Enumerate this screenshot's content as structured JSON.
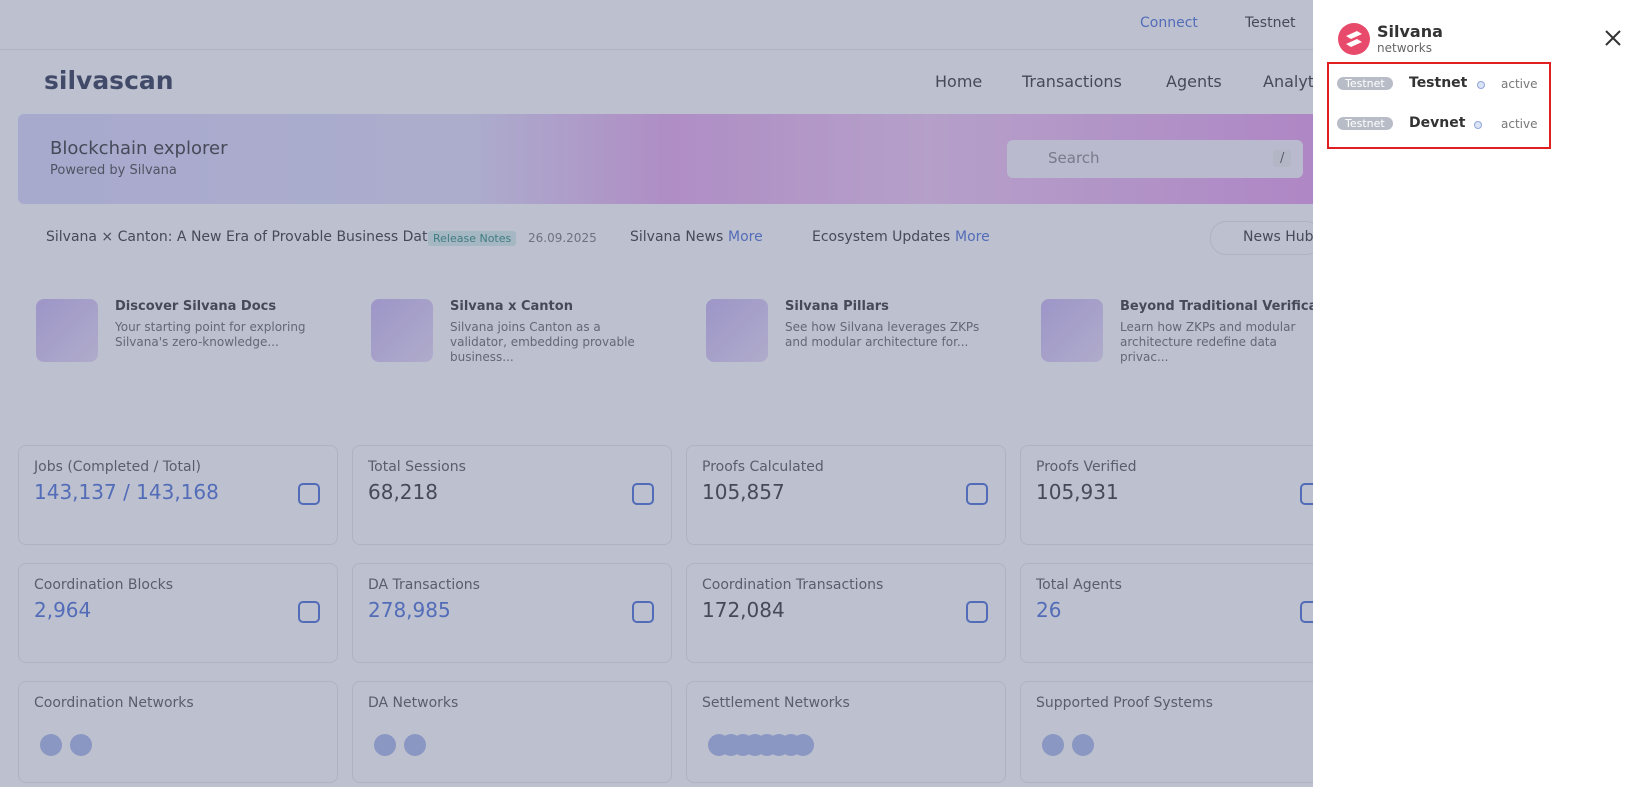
{
  "topbar": {
    "connect": "Connect",
    "network": "Testnet"
  },
  "logo": "silvascan",
  "nav": [
    "Home",
    "Transactions",
    "Agents",
    "Analytics"
  ],
  "banner": {
    "title": "Blockchain explorer",
    "subtitle": "Powered by Silvana",
    "search": "Search",
    "shortcut": "/"
  },
  "ticker": {
    "headline": "Silvana × Canton: A New Era of Provable Business Data",
    "badge": "Release Notes",
    "date": "26.09.2025",
    "news": "Silvana News",
    "news_more": "More",
    "ecosystem": "Ecosystem Updates",
    "ecosystem_more": "More",
    "hub": "News Hub"
  },
  "articles": [
    {
      "title": "Discover Silvana Docs",
      "text": "Your starting point for exploring Silvana's zero-knowledge..."
    },
    {
      "title": "Silvana x Canton",
      "text": "Silvana joins Canton as a validator, embedding provable business..."
    },
    {
      "title": "Silvana Pillars",
      "text": "See how Silvana leverages ZKPs and modular architecture for..."
    },
    {
      "title": "Beyond Traditional Verification",
      "text": "Learn how ZKPs and modular architecture redefine data privac..."
    }
  ],
  "stats": [
    {
      "label": "Jobs (Completed / Total)",
      "value": "143,137 / 143,168"
    },
    {
      "label": "Total Sessions",
      "value": "68,218"
    },
    {
      "label": "Proofs Calculated",
      "value": "105,857"
    },
    {
      "label": "Proofs Verified",
      "value": "105,931"
    },
    {
      "label": "Coordination Blocks",
      "value": "2,964"
    },
    {
      "label": "DA Transactions",
      "value": "278,985"
    },
    {
      "label": "Coordination Transactions",
      "value": "172,084"
    },
    {
      "label": "Total Agents",
      "value": "26"
    }
  ],
  "networks": [
    "Coordination Networks",
    "DA Networks",
    "Settlement Networks",
    "Supported Proof Systems"
  ],
  "drawer": {
    "brand": "Silvana",
    "sub": "networks",
    "items": [
      {
        "badge": "Testnet",
        "name": "Testnet",
        "status": "active"
      },
      {
        "badge": "Testnet",
        "name": "Devnet",
        "status": "active"
      }
    ]
  }
}
